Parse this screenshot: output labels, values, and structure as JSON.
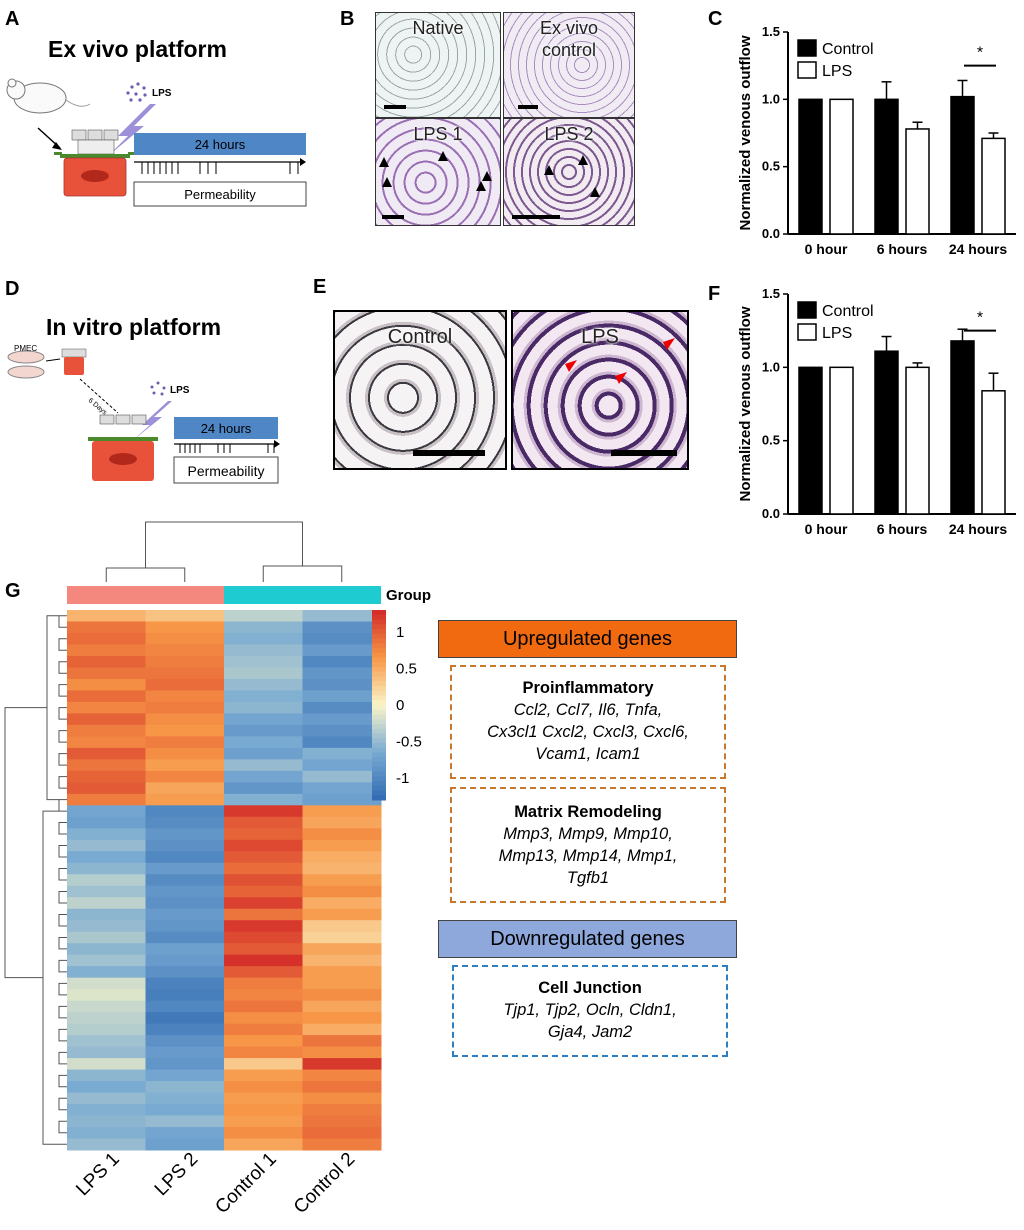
{
  "panels": {
    "A": {
      "label": "A",
      "title": "Ex vivo platform",
      "lps": "LPS",
      "timeline": "24 hours",
      "permeability": "Permeability"
    },
    "B": {
      "label": "B",
      "images": [
        "Native",
        "Ex vivo control",
        "LPS 1",
        "LPS 2"
      ]
    },
    "D": {
      "label": "D",
      "title": "In vitro platform",
      "pmec": "PMEC",
      "days": "6 Days",
      "lps": "LPS",
      "timeline": "24 hours",
      "permeability": "Permeability"
    },
    "E": {
      "label": "E",
      "images": [
        "Control",
        "LPS"
      ]
    },
    "C": {
      "label": "C"
    },
    "F": {
      "label": "F"
    },
    "G": {
      "label": "G"
    }
  },
  "chart_data": [
    {
      "panel": "C",
      "type": "bar",
      "categories": [
        "0 hour",
        "6 hours",
        "24 hours"
      ],
      "series": [
        {
          "name": "Control",
          "color": "#000000",
          "values": [
            1.0,
            1.0,
            1.02
          ],
          "errors": [
            0,
            0.13,
            0.12
          ]
        },
        {
          "name": "LPS",
          "color": "#ffffff",
          "values": [
            1.0,
            0.78,
            0.71
          ],
          "errors": [
            0,
            0.05,
            0.04
          ]
        }
      ],
      "ylabel": "Normalized venous outflow",
      "ylim": [
        0,
        1.5
      ],
      "yticks": [
        "0.0",
        "0.5",
        "1.0",
        "1.5"
      ],
      "significance": {
        "category": "24 hours",
        "marker": "*"
      }
    },
    {
      "panel": "F",
      "type": "bar",
      "categories": [
        "0 hour",
        "6 hours",
        "24 hours"
      ],
      "series": [
        {
          "name": "Control",
          "color": "#000000",
          "values": [
            1.0,
            1.11,
            1.18
          ],
          "errors": [
            0,
            0.1,
            0.08
          ]
        },
        {
          "name": "LPS",
          "color": "#ffffff",
          "values": [
            1.0,
            1.0,
            0.84
          ],
          "errors": [
            0,
            0.03,
            0.12
          ]
        }
      ],
      "ylabel": "Normalized venous outflow",
      "ylim": [
        0,
        1.5
      ],
      "yticks": [
        "0.0",
        "0.5",
        "1.0",
        "1.5"
      ],
      "significance": {
        "category": "24 hours",
        "marker": "*"
      }
    },
    {
      "panel": "G",
      "type": "heatmap",
      "columns": [
        "LPS 1",
        "LPS 2",
        "Control 1",
        "Control 2"
      ],
      "groups": [
        {
          "name": "LPS",
          "color": "#f4877e"
        },
        {
          "name": "Control",
          "color": "#1ecbd0"
        }
      ],
      "legend_title": "Group",
      "colorbar_ticks": [
        "1",
        "0.5",
        "0",
        "-0.5",
        "-1"
      ],
      "colorbar_range": [
        -1.3,
        1.3
      ],
      "values": [
        [
          0.45,
          0.35,
          -0.3,
          -0.5
        ],
        [
          0.85,
          0.65,
          -0.55,
          -0.9
        ],
        [
          0.9,
          0.7,
          -0.6,
          -0.95
        ],
        [
          0.8,
          0.75,
          -0.5,
          -0.8
        ],
        [
          0.95,
          0.8,
          -0.45,
          -1.0
        ],
        [
          0.85,
          0.85,
          -0.4,
          -0.85
        ],
        [
          0.7,
          0.9,
          -0.5,
          -0.9
        ],
        [
          0.9,
          0.75,
          -0.6,
          -0.75
        ],
        [
          0.75,
          0.8,
          -0.55,
          -0.95
        ],
        [
          0.95,
          0.7,
          -0.7,
          -0.8
        ],
        [
          0.8,
          0.65,
          -0.8,
          -0.9
        ],
        [
          0.75,
          0.8,
          -0.65,
          -1.0
        ],
        [
          1.0,
          0.7,
          -0.75,
          -0.6
        ],
        [
          0.85,
          0.6,
          -0.5,
          -0.7
        ],
        [
          0.95,
          0.75,
          -0.7,
          -0.5
        ],
        [
          1.0,
          0.55,
          -0.85,
          -0.7
        ],
        [
          0.8,
          0.6,
          -0.6,
          -0.75
        ],
        [
          -0.7,
          -1.0,
          1.2,
          0.6
        ],
        [
          -0.75,
          -0.95,
          1.0,
          0.55
        ],
        [
          -0.6,
          -0.85,
          0.95,
          0.7
        ],
        [
          -0.5,
          -0.9,
          1.1,
          0.6
        ],
        [
          -0.65,
          -1.0,
          1.0,
          0.5
        ],
        [
          -0.55,
          -0.8,
          0.9,
          0.45
        ],
        [
          -0.35,
          -0.95,
          1.05,
          0.6
        ],
        [
          -0.45,
          -0.85,
          0.95,
          0.7
        ],
        [
          -0.3,
          -0.9,
          1.15,
          0.5
        ],
        [
          -0.55,
          -0.8,
          0.85,
          0.6
        ],
        [
          -0.5,
          -0.85,
          1.2,
          0.3
        ],
        [
          -0.4,
          -0.95,
          1.1,
          0.25
        ],
        [
          -0.55,
          -0.75,
          1.0,
          0.55
        ],
        [
          -0.45,
          -0.8,
          1.25,
          0.45
        ],
        [
          -0.6,
          -0.9,
          1.0,
          0.6
        ],
        [
          -0.2,
          -1.05,
          0.8,
          0.6
        ],
        [
          -0.15,
          -1.1,
          0.75,
          0.7
        ],
        [
          -0.25,
          -1.0,
          0.85,
          0.55
        ],
        [
          -0.3,
          -1.15,
          0.7,
          0.65
        ],
        [
          -0.35,
          -1.05,
          0.8,
          0.5
        ],
        [
          -0.45,
          -0.9,
          0.65,
          0.85
        ],
        [
          -0.5,
          -0.8,
          0.75,
          0.7
        ],
        [
          -0.2,
          -0.85,
          0.3,
          1.2
        ],
        [
          -0.55,
          -0.7,
          0.6,
          0.75
        ],
        [
          -0.65,
          -0.55,
          0.7,
          0.85
        ],
        [
          -0.5,
          -0.6,
          0.6,
          0.7
        ],
        [
          -0.6,
          -0.65,
          0.65,
          0.8
        ],
        [
          -0.55,
          -0.5,
          0.6,
          0.85
        ],
        [
          -0.6,
          -0.7,
          0.7,
          0.9
        ],
        [
          -0.5,
          -0.75,
          0.55,
          0.8
        ]
      ],
      "annotations": [
        {
          "banner": "Upregulated genes",
          "banner_color": "#f26a10",
          "box_color": "#c8782d",
          "boxes": [
            {
              "heading": "Proinflammatory",
              "lines": [
                "Ccl2, Ccl7, Il6, Tnfa,",
                "Cx3cl1 Cxcl2, Cxcl3, Cxcl6,",
                "Vcam1, Icam1"
              ]
            },
            {
              "heading": "Matrix Remodeling",
              "lines": [
                "Mmp3, Mmp9, Mmp10,",
                "Mmp13, Mmp14, Mmp1,",
                "Tgfb1"
              ]
            }
          ]
        },
        {
          "banner": "Downregulated genes",
          "banner_color": "#8fa8dc",
          "box_color": "#2e7ec2",
          "boxes": [
            {
              "heading": "Cell Junction",
              "lines": [
                "Tjp1, Tjp2, Ocln, Cldn1,",
                "Gja4, Jam2"
              ]
            }
          ]
        }
      ]
    }
  ]
}
